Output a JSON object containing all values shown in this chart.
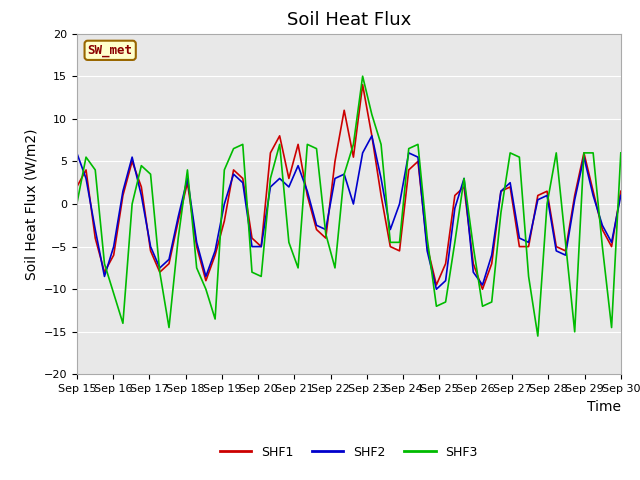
{
  "title": "Soil Heat Flux",
  "ylabel": "Soil Heat Flux (W/m2)",
  "xlabel": "Time",
  "ylim": [
    -20,
    20
  ],
  "yticks": [
    -20,
    -15,
    -10,
    -5,
    0,
    5,
    10,
    15,
    20
  ],
  "line_colors": {
    "SHF1": "#cc0000",
    "SHF2": "#0000cc",
    "SHF3": "#00bb00"
  },
  "legend_label": "SW_met",
  "legend_box_color": "#ffffcc",
  "legend_box_edge": "#996600",
  "plot_bg": "#e8e8e8",
  "fig_bg": "#ffffff",
  "title_fontsize": 13,
  "axis_fontsize": 10,
  "tick_fontsize": 8,
  "x_tick_labels": [
    "Sep 15",
    "Sep 16",
    "Sep 17",
    "Sep 18",
    "Sep 19",
    "Sep 20",
    "Sep 21",
    "Sep 22",
    "Sep 23",
    "Sep 24",
    "Sep 25",
    "Sep 26",
    "Sep 27",
    "Sep 28",
    "Sep 29",
    "Sep 30"
  ],
  "shf1": [
    2.0,
    4.0,
    -4.0,
    -8.0,
    -6.0,
    1.0,
    5.0,
    2.0,
    -5.5,
    -8.0,
    -7.0,
    -2.0,
    2.5,
    -5.0,
    -9.0,
    -6.0,
    -2.0,
    4.0,
    3.0,
    -4.0,
    -5.0,
    6.0,
    8.0,
    3.0,
    7.0,
    1.0,
    -3.0,
    -4.0,
    5.0,
    11.0,
    5.5,
    14.0,
    8.0,
    1.0,
    -5.0,
    -5.5,
    4.0,
    5.0,
    -5.0,
    -9.5,
    -7.0,
    1.0,
    2.0,
    -7.0,
    -10.0,
    -7.0,
    1.5,
    2.0,
    -5.0,
    -5.0,
    1.0,
    1.5,
    -5.0,
    -5.5,
    1.0,
    6.0,
    1.5,
    -3.0,
    -5.0,
    1.5
  ],
  "shf2": [
    6.0,
    3.0,
    -3.0,
    -8.5,
    -5.0,
    1.5,
    5.5,
    1.0,
    -5.0,
    -7.5,
    -6.5,
    -1.5,
    3.0,
    -4.5,
    -8.5,
    -5.5,
    0.0,
    3.5,
    2.5,
    -5.0,
    -5.0,
    2.0,
    3.0,
    2.0,
    4.5,
    1.5,
    -2.5,
    -3.0,
    3.0,
    3.5,
    0.0,
    6.0,
    8.0,
    3.0,
    -3.0,
    0.0,
    6.0,
    5.5,
    -5.5,
    -10.0,
    -9.0,
    -0.5,
    3.0,
    -8.0,
    -9.5,
    -6.0,
    1.5,
    2.5,
    -4.0,
    -4.5,
    0.5,
    1.0,
    -5.5,
    -6.0,
    0.5,
    5.5,
    1.0,
    -2.5,
    -4.5,
    1.0
  ],
  "shf3": [
    0.0,
    5.5,
    4.0,
    -7.0,
    -10.5,
    -14.0,
    0.0,
    4.5,
    3.5,
    -8.0,
    -14.5,
    -4.0,
    4.0,
    -7.5,
    -10.0,
    -13.5,
    4.0,
    6.5,
    7.0,
    -8.0,
    -8.5,
    3.0,
    7.0,
    -4.5,
    -7.5,
    7.0,
    6.5,
    -3.5,
    -7.5,
    3.5,
    7.0,
    15.0,
    10.5,
    7.0,
    -4.5,
    -4.5,
    6.5,
    7.0,
    -4.0,
    -12.0,
    -11.5,
    -4.5,
    3.0,
    -5.0,
    -12.0,
    -11.5,
    -1.0,
    6.0,
    5.5,
    -8.5,
    -15.5,
    0.0,
    6.0,
    -4.5,
    -15.0,
    6.0,
    6.0,
    -5.0,
    -14.5,
    6.0
  ]
}
